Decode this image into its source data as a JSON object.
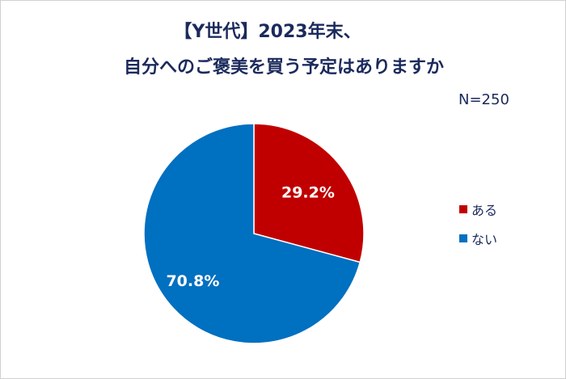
{
  "chart_data": {
    "type": "pie",
    "title_line1": "【Y世代】2023年末、",
    "title_line2": "自分へのご褒美を買う予定はありますか",
    "sample_size": "N=250",
    "categories": [
      "ある",
      "ない"
    ],
    "values": [
      29.2,
      70.8
    ],
    "labels": [
      "29.2%",
      "70.8%"
    ],
    "colors": [
      "#c00000",
      "#0070c0"
    ],
    "start_angle": "12 o'clock, clockwise",
    "legend_position": "right"
  }
}
